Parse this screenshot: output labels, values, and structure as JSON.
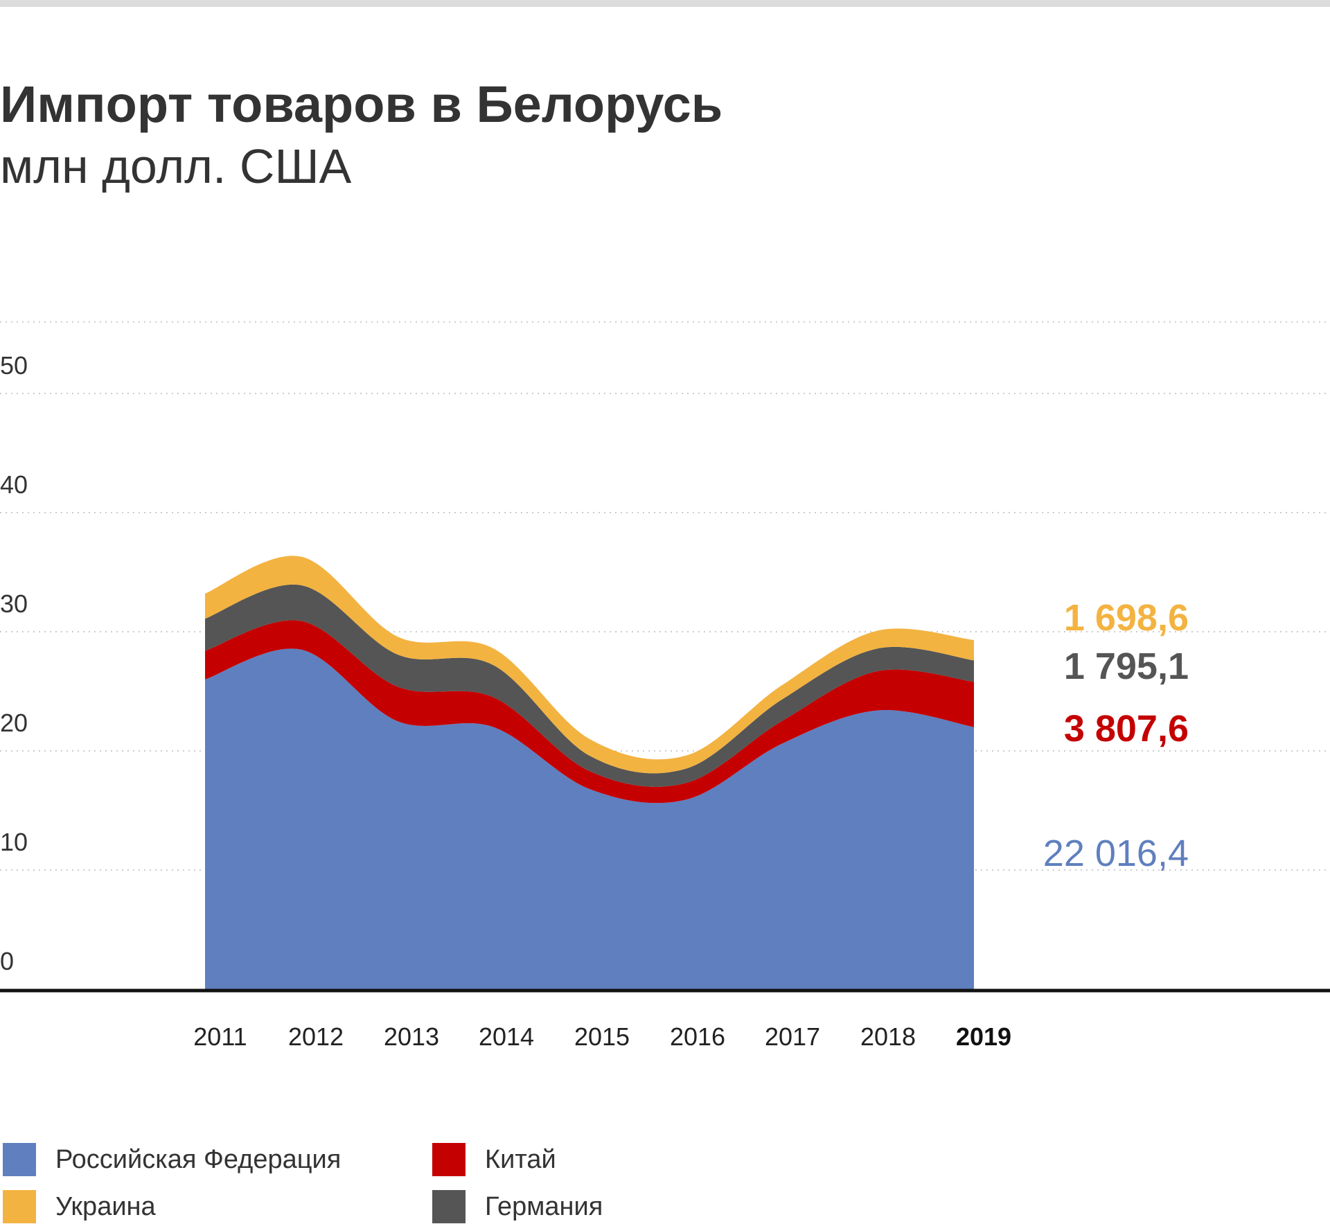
{
  "header": {
    "title": "Импорт товаров в Белорусь",
    "subtitle": "млн долл. США"
  },
  "colors": {
    "russia": "#5f7fbf",
    "china": "#c40000",
    "germany": "#555555",
    "ukraine": "#f3b341",
    "axis": "#111111",
    "grid": "#cccccc"
  },
  "chart_data": {
    "type": "area",
    "stacked": true,
    "x": [
      "2011",
      "2012",
      "2013",
      "2014",
      "2015",
      "2016",
      "2017",
      "2018",
      "2019"
    ],
    "highlight_x": "2019",
    "ylim": [
      0,
      60
    ],
    "y_ticks": [
      0,
      10,
      20,
      30,
      40,
      50
    ],
    "y_tick_labels": [
      "0",
      "10",
      "20",
      "30",
      "40",
      "50"
    ],
    "grid": "dotted horizontal",
    "series": [
      {
        "name": "Российская Федерация",
        "color": "#5f7fbf",
        "values": [
          26.0,
          28.5,
          22.5,
          22.0,
          16.8,
          15.9,
          20.6,
          23.4,
          22.0
        ]
      },
      {
        "name": "Китай",
        "color": "#c40000",
        "values": [
          2.4,
          2.4,
          2.9,
          2.5,
          1.5,
          1.4,
          1.9,
          3.3,
          3.8
        ]
      },
      {
        "name": "Германия",
        "color": "#555555",
        "values": [
          2.7,
          3.0,
          2.7,
          2.7,
          1.3,
          1.2,
          1.8,
          1.9,
          1.8
        ]
      },
      {
        "name": "Украина",
        "color": "#f3b341",
        "values": [
          2.1,
          2.4,
          1.5,
          1.4,
          1.4,
          1.1,
          1.2,
          1.5,
          1.7
        ]
      }
    ],
    "end_labels": [
      {
        "series": "Украина",
        "text": "1 698,6",
        "color": "#f3b341"
      },
      {
        "series": "Германия",
        "text": "1 795,1",
        "color": "#555555"
      },
      {
        "series": "Китай",
        "text": "3 807,6",
        "color": "#c40000"
      },
      {
        "series": "Российская Федерация",
        "text": "22 016,4",
        "color": "#5f7fbf"
      }
    ],
    "legend": [
      {
        "name": "Российская Федерация",
        "color": "#5f7fbf"
      },
      {
        "name": "Китай",
        "color": "#c40000"
      },
      {
        "name": "Украина",
        "color": "#f3b341"
      },
      {
        "name": "Германия",
        "color": "#555555"
      }
    ],
    "legend_position": "bottom"
  }
}
